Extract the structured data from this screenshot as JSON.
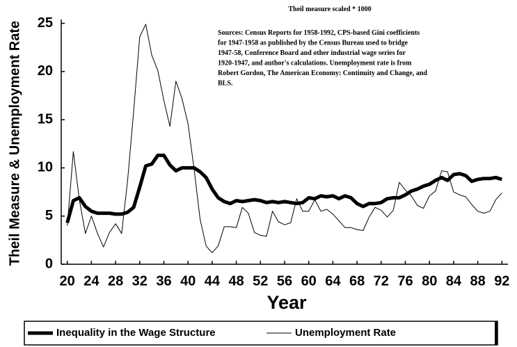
{
  "chart_data": {
    "type": "line",
    "scale_note": "Theil measure scaled * 1000",
    "source_note": [
      "Sources:  Census Reports for 1958-1992,  CPS-based Gini coefficients",
      "for 1947-1958 as published by the Census Bureau used to bridge",
      "1947-58,  Conference Board and other industrial  wage series for",
      "1920-1947, and author's calculations.  Unemployment rate is from",
      "Robert Gordon, The American Economy: Continuity and Change,  and",
      "BLS."
    ],
    "x_label": "Year",
    "y_label": "Theil Measure & Unemployment Rate",
    "x": [
      20,
      21,
      22,
      23,
      24,
      25,
      26,
      27,
      28,
      29,
      30,
      31,
      32,
      33,
      34,
      35,
      36,
      37,
      38,
      39,
      40,
      41,
      42,
      43,
      44,
      45,
      46,
      47,
      48,
      49,
      50,
      51,
      52,
      53,
      54,
      55,
      56,
      57,
      58,
      59,
      60,
      61,
      62,
      63,
      64,
      65,
      66,
      67,
      68,
      69,
      70,
      71,
      72,
      73,
      74,
      75,
      76,
      77,
      78,
      79,
      80,
      81,
      82,
      83,
      84,
      85,
      86,
      87,
      88,
      89,
      90,
      91,
      92
    ],
    "series": [
      {
        "name": "Inequality in the Wage Structure",
        "color": "#000000",
        "width": 5,
        "values": [
          4.3,
          6.6,
          6.9,
          6.0,
          5.5,
          5.3,
          5.3,
          5.3,
          5.2,
          5.2,
          5.4,
          5.9,
          8.0,
          10.2,
          10.4,
          11.3,
          11.3,
          10.3,
          9.7,
          10.0,
          10.0,
          10.0,
          9.6,
          9.0,
          7.8,
          6.9,
          6.5,
          6.3,
          6.6,
          6.5,
          6.6,
          6.7,
          6.6,
          6.4,
          6.5,
          6.4,
          6.5,
          6.4,
          6.3,
          6.4,
          6.9,
          6.8,
          7.1,
          7.0,
          7.1,
          6.8,
          7.1,
          6.9,
          6.3,
          6.0,
          6.3,
          6.3,
          6.4,
          6.8,
          6.9,
          6.9,
          7.2,
          7.6,
          7.8,
          8.1,
          8.3,
          8.7,
          9.0,
          8.7,
          9.3,
          9.4,
          9.2,
          8.6,
          8.8,
          8.9,
          8.9,
          9.0,
          8.8
        ]
      },
      {
        "name": "Unemployment Rate",
        "color": "#000000",
        "width": 1,
        "values": [
          4.0,
          11.7,
          6.7,
          3.2,
          5.0,
          3.2,
          1.8,
          3.3,
          4.2,
          3.2,
          8.7,
          15.9,
          23.6,
          24.9,
          21.7,
          20.1,
          17.0,
          14.3,
          19.0,
          17.2,
          14.6,
          9.9,
          4.7,
          1.9,
          1.2,
          1.9,
          3.9,
          3.9,
          3.8,
          5.9,
          5.3,
          3.3,
          3.0,
          2.9,
          5.5,
          4.4,
          4.1,
          4.3,
          6.8,
          5.5,
          5.5,
          6.7,
          5.5,
          5.7,
          5.2,
          4.5,
          3.8,
          3.8,
          3.6,
          3.5,
          4.9,
          5.9,
          5.6,
          4.9,
          5.6,
          8.5,
          7.7,
          7.1,
          6.1,
          5.8,
          7.1,
          7.6,
          9.7,
          9.6,
          7.5,
          7.2,
          7.0,
          6.2,
          5.5,
          5.3,
          5.5,
          6.7,
          7.4
        ]
      }
    ],
    "xlim": [
      19,
      93
    ],
    "xticks": [
      20,
      24,
      28,
      32,
      36,
      40,
      44,
      48,
      52,
      56,
      60,
      64,
      68,
      72,
      76,
      80,
      84,
      88,
      92
    ],
    "ylim": [
      0,
      25.4
    ],
    "yticks": [
      0,
      5,
      10,
      15,
      20,
      25
    ],
    "legend": "bottom"
  }
}
